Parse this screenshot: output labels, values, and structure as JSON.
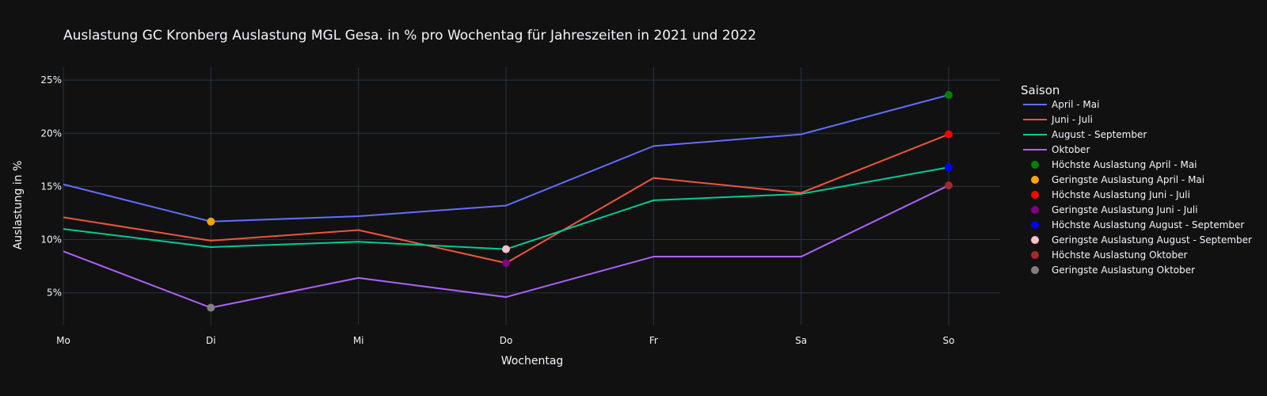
{
  "chart_data": {
    "type": "line",
    "title": "Auslastung GC Kronberg Auslastung MGL Gesa. in % pro Wochentag für Jahreszeiten in 2021 und 2022",
    "xlabel": "Wochentag",
    "ylabel": "Auslastung in %",
    "categories": [
      "Mo",
      "Di",
      "Mi",
      "Do",
      "Fr",
      "Sa",
      "So"
    ],
    "ylim": [
      2,
      26.2
    ],
    "yticks": [
      5,
      10,
      15,
      20,
      25
    ],
    "ytick_labels": [
      "5%",
      "10%",
      "15%",
      "20%",
      "25%"
    ],
    "grid": true,
    "legend_title": "Saison",
    "legend_position": "right",
    "series": [
      {
        "name": "April - Mai",
        "color": "#636efa",
        "values": [
          15.2,
          11.7,
          12.2,
          13.2,
          18.8,
          19.9,
          23.6
        ]
      },
      {
        "name": "Juni - Juli",
        "color": "#ef553b",
        "values": [
          12.1,
          9.9,
          10.9,
          7.8,
          15.8,
          14.4,
          19.9
        ]
      },
      {
        "name": "August - September",
        "color": "#00cc96",
        "values": [
          11.0,
          9.3,
          9.8,
          9.1,
          13.7,
          14.3,
          16.8
        ]
      },
      {
        "name": "Oktober",
        "color": "#ab63fa",
        "values": [
          8.9,
          3.6,
          6.4,
          4.6,
          8.4,
          8.4,
          15.1
        ]
      }
    ],
    "markers": [
      {
        "name": "Höchste Auslastung April - Mai",
        "color": "#008000",
        "x": "So",
        "y": 23.6
      },
      {
        "name": "Geringste Auslastung April - Mai",
        "color": "#ffa500",
        "x": "Di",
        "y": 11.7
      },
      {
        "name": "Höchste Auslastung Juni - Juli",
        "color": "#ff0000",
        "x": "So",
        "y": 19.9
      },
      {
        "name": "Geringste Auslastung Juni - Juli",
        "color": "#800080",
        "x": "Do",
        "y": 7.8
      },
      {
        "name": "Höchste Auslastung August - September",
        "color": "#0000ff",
        "x": "So",
        "y": 16.8
      },
      {
        "name": "Geringste Auslastung August - September",
        "color": "#ffc0cb",
        "x": "Do",
        "y": 9.1
      },
      {
        "name": "Höchste Auslastung Oktober",
        "color": "#a52a2a",
        "x": "So",
        "y": 15.1
      },
      {
        "name": "Geringste Auslastung Oktober",
        "color": "#808080",
        "x": "Di",
        "y": 3.6
      }
    ]
  }
}
